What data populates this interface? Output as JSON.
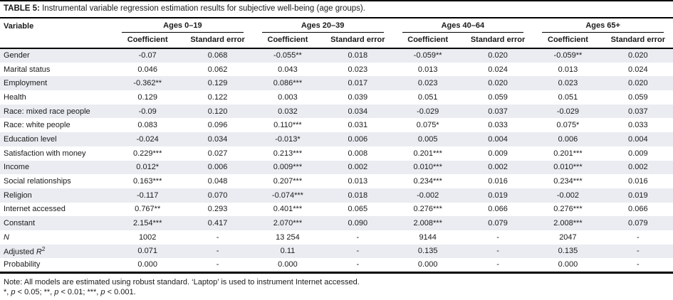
{
  "table": {
    "title_segments": [
      {
        "t": "TABLE 5: ",
        "style": "bold"
      },
      {
        "t": "Instrumental variable regression estimation results for subjective well-being (age groups)."
      }
    ],
    "variable_header": "Variable",
    "groups": [
      {
        "label": "Ages 0–19"
      },
      {
        "label": "Ages 20–39"
      },
      {
        "label": "Ages 40–64"
      },
      {
        "label": "Ages 65+"
      }
    ],
    "subheaders": [
      "Coefficient",
      "Standard error"
    ],
    "rows": [
      {
        "label": "Gender",
        "cells": [
          "-0.07",
          "0.068",
          "-0.055**",
          "0.018",
          "-0.059**",
          "0.020",
          "-0.059**",
          "0.020"
        ]
      },
      {
        "label": "Marital status",
        "cells": [
          "0.046",
          "0.062",
          "0.043",
          "0.023",
          "0.013",
          "0.024",
          "0.013",
          "0.024"
        ]
      },
      {
        "label": "Employment",
        "cells": [
          "-0.362**",
          "0.129",
          "0.086***",
          "0.017",
          "0.023",
          "0.020",
          "0.023",
          "0.020"
        ]
      },
      {
        "label": "Health",
        "cells": [
          "0.129",
          "0.122",
          "0.003",
          "0.039",
          "0.051",
          "0.059",
          "0.051",
          "0.059"
        ]
      },
      {
        "label": "Race: mixed race people",
        "cells": [
          "-0.09",
          "0.120",
          "0.032",
          "0.034",
          "-0.029",
          "0.037",
          "-0.029",
          "0.037"
        ]
      },
      {
        "label": "Race: white people",
        "cells": [
          "0.083",
          "0.096",
          "0.110***",
          "0.031",
          "0.075*",
          "0.033",
          "0.075*",
          "0.033"
        ]
      },
      {
        "label": "Education level",
        "cells": [
          "-0.024",
          "0.034",
          "-0.013*",
          "0.006",
          "0.005",
          "0.004",
          "0.006",
          "0.004"
        ]
      },
      {
        "label": "Satisfaction with money",
        "cells": [
          "0.229***",
          "0.027",
          "0.213***",
          "0.008",
          "0.201***",
          "0.009",
          "0.201***",
          "0.009"
        ]
      },
      {
        "label": "Income",
        "cells": [
          "0.012*",
          "0.006",
          "0.009***",
          "0.002",
          "0.010***",
          "0.002",
          "0.010***",
          "0.002"
        ]
      },
      {
        "label": "Social relationships",
        "cells": [
          "0.163***",
          "0.048",
          "0.207***",
          "0.013",
          "0.234***",
          "0.016",
          "0.234***",
          "0.016"
        ]
      },
      {
        "label": "Religion",
        "cells": [
          "-0.117",
          "0.070",
          "-0.074***",
          "0.018",
          "-0.002",
          "0.019",
          "-0.002",
          "0.019"
        ]
      },
      {
        "label": "Internet accessed",
        "cells": [
          "0.767**",
          "0.293",
          "0.401***",
          "0.065",
          "0.276***",
          "0.066",
          "0.276***",
          "0.066"
        ]
      },
      {
        "label": "Constant",
        "cells": [
          "2.154***",
          "0.417",
          "2.070***",
          "0.090",
          "2.008***",
          "0.079",
          "2.008***",
          "0.079"
        ]
      },
      {
        "label": [
          {
            "t": "N",
            "style": "italic"
          }
        ],
        "cells": [
          "1002",
          "-",
          "13 254",
          "-",
          "9144",
          "-",
          "2047",
          "-"
        ]
      },
      {
        "label": [
          {
            "t": "Adjusted "
          },
          {
            "t": "R",
            "style": "italic"
          },
          {
            "t": "2",
            "style": "sup"
          }
        ],
        "cells": [
          "0.071",
          "-",
          "0.11",
          "-",
          "0.135",
          "-",
          "0.135",
          "-"
        ]
      },
      {
        "label": "Probability",
        "cells": [
          "0.000",
          "-",
          "0.000",
          "-",
          "0.000",
          "-",
          "0.000",
          "-"
        ]
      }
    ],
    "notes": {
      "line1": "Note: All models are estimated using robust standard. ‘Laptop’ is used to instrument Internet accessed.",
      "line2_segments": [
        {
          "t": "*, "
        },
        {
          "t": "p",
          "style": "italic"
        },
        {
          "t": " < 0.05; **, "
        },
        {
          "t": "p",
          "style": "italic"
        },
        {
          "t": " < 0.01; ***, "
        },
        {
          "t": "p",
          "style": "italic"
        },
        {
          "t": " < 0.001."
        }
      ]
    },
    "colors": {
      "stripe": "#eaecf1",
      "rule": "#000000",
      "text": "#1a1a1a"
    }
  }
}
